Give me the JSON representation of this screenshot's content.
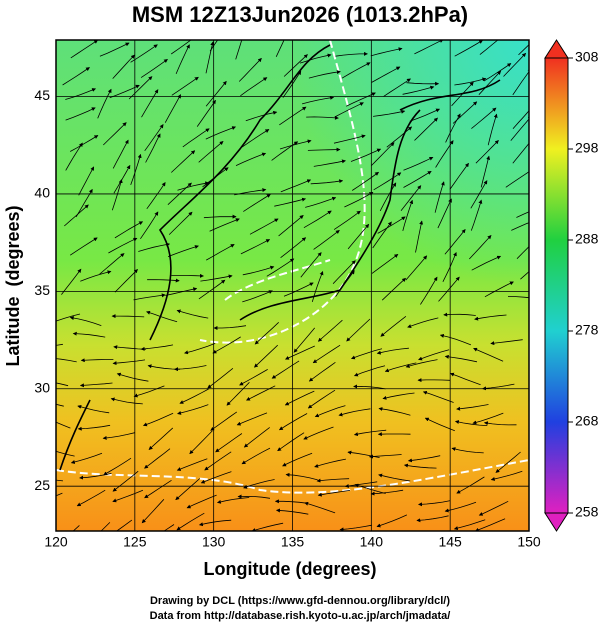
{
  "title": "MSM 12Z13Jun2026 (1013.2hPa)",
  "map": {
    "x_label": "Longitude (degrees)",
    "y_label": "Latitude  (degrees)",
    "xlim": [
      120,
      150
    ],
    "ylim": [
      22.7,
      47.9
    ],
    "xticks": [
      120,
      125,
      130,
      135,
      140,
      145,
      150
    ],
    "yticks": [
      25,
      30,
      35,
      40,
      45
    ],
    "grid": true
  },
  "colorbar": {
    "lim": [
      258,
      308
    ],
    "ticks": [
      258,
      268,
      278,
      288,
      298,
      308
    ]
  },
  "credits": [
    "Drawing by DCL (https://www.gfd-dennou.org/library/dcl/)",
    "Data from http://database.rish.kyoto-u.ac.jp/arch/jmadata/"
  ]
}
